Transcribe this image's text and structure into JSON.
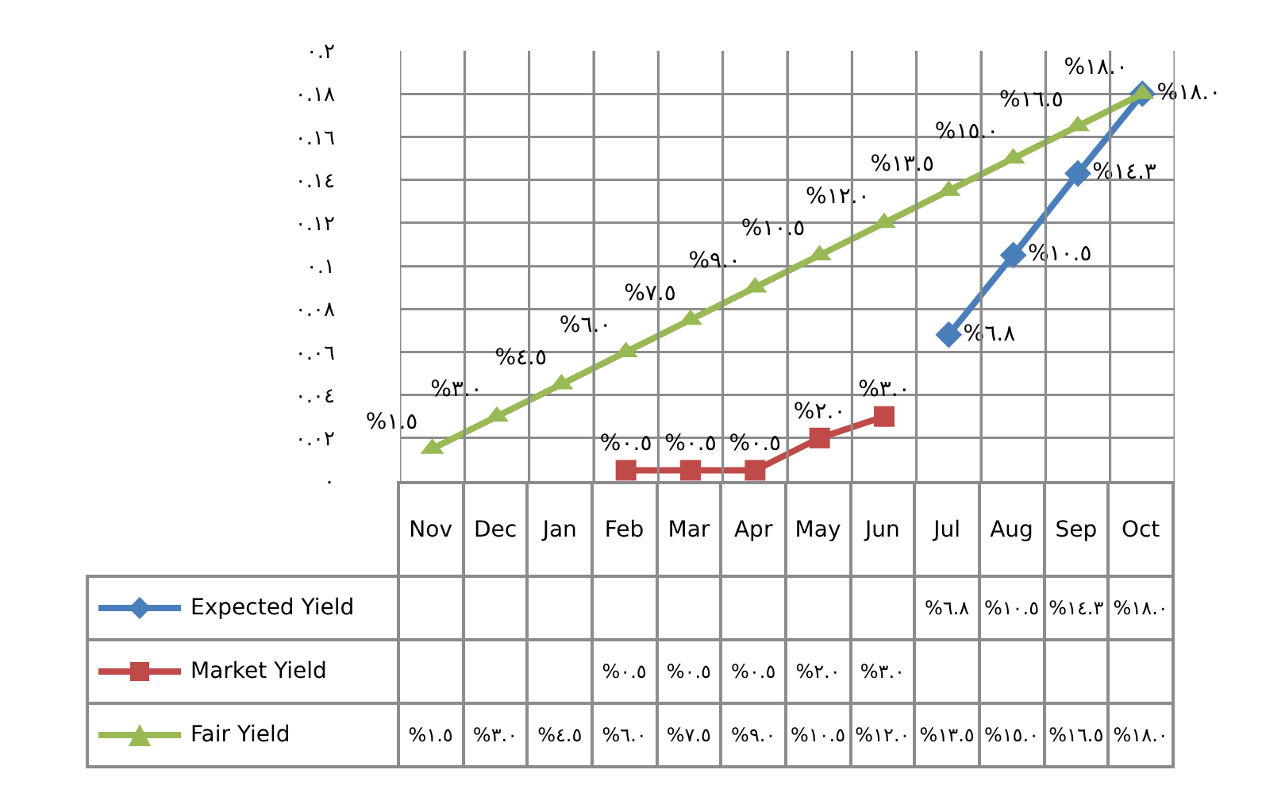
{
  "chart_data": {
    "type": "line",
    "categories": [
      "Nov",
      "Dec",
      "Jan",
      "Feb",
      "Mar",
      "Apr",
      "May",
      "Jun",
      "Jul",
      "Aug",
      "Sep",
      "Oct"
    ],
    "series": [
      {
        "name": "Expected Yield",
        "color": "#4a7ebb",
        "marker": "diamond",
        "values": [
          null,
          null,
          null,
          null,
          null,
          null,
          null,
          null,
          0.068,
          0.105,
          0.143,
          0.18
        ],
        "value_labels": [
          null,
          null,
          null,
          null,
          null,
          null,
          null,
          null,
          "%٦.٨",
          "%١٠.٥",
          "%١٤.٣",
          "%١٨.٠"
        ]
      },
      {
        "name": "Market Yield",
        "color": "#be4b48",
        "marker": "square",
        "values": [
          null,
          null,
          null,
          0.005,
          0.005,
          0.005,
          0.02,
          0.03,
          null,
          null,
          null,
          null
        ],
        "value_labels": [
          null,
          null,
          null,
          "%٠.٥",
          "%٠.٥",
          "%٠.٥",
          "%٢.٠",
          "%٣.٠",
          null,
          null,
          null,
          null
        ]
      },
      {
        "name": "Fair Yield",
        "color": "#98b954",
        "marker": "triangle",
        "values": [
          0.015,
          0.03,
          0.045,
          0.06,
          0.075,
          0.09,
          0.105,
          0.12,
          0.135,
          0.15,
          0.165,
          0.18
        ],
        "value_labels": [
          "%١.٥",
          "%٣.٠",
          "%٤.٥",
          "%٦.٠",
          "%٧.٥",
          "%٩.٠",
          "%١٠.٥",
          "%١٢.٠",
          "%١٣.٥",
          "%١٥.٠",
          "%١٦.٥",
          "%١٨.٠"
        ]
      }
    ],
    "ylim": [
      0,
      0.2
    ],
    "yticks": [
      {
        "value": 0,
        "label": "٠"
      },
      {
        "value": 0.02,
        "label": "٠.٠٢"
      },
      {
        "value": 0.04,
        "label": "٠.٠٤"
      },
      {
        "value": 0.06,
        "label": "٠.٠٦"
      },
      {
        "value": 0.08,
        "label": "٠.٠٨"
      },
      {
        "value": 0.1,
        "label": "٠.١"
      },
      {
        "value": 0.12,
        "label": "٠.١٢"
      },
      {
        "value": 0.14,
        "label": "٠.١٤"
      },
      {
        "value": 0.16,
        "label": "٠.١٦"
      },
      {
        "value": 0.18,
        "label": "٠.١٨"
      },
      {
        "value": 0.2,
        "label": "٠.٢"
      }
    ],
    "grid": true,
    "legend": "bottom left",
    "line_style": "solid"
  }
}
